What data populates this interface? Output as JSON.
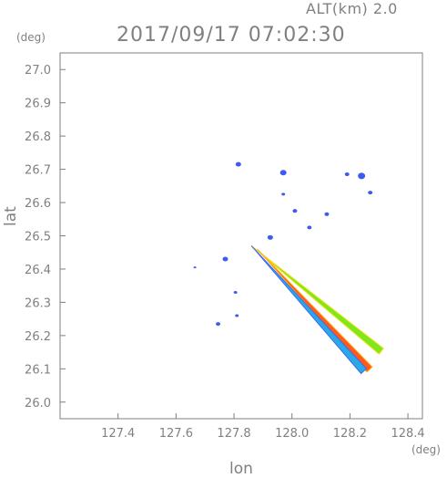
{
  "header": {
    "altitude": "ALT(km)  2.0",
    "timestamp": "2017/09/17  07:02:30"
  },
  "axes": {
    "y_unit": "(deg)",
    "x_unit": "(deg)",
    "y_title": "lat",
    "x_title": "lon"
  },
  "chart_data": {
    "type": "scatter",
    "xlim": [
      127.2,
      128.45
    ],
    "ylim": [
      25.95,
      27.05
    ],
    "x_ticks": [
      127.4,
      127.6,
      127.8,
      128.0,
      128.2,
      128.4
    ],
    "x_tick_labels": [
      "127.4",
      "127.6",
      "127.8",
      "128.0",
      "128.2",
      "128.4"
    ],
    "y_ticks": [
      26.0,
      26.1,
      26.2,
      26.3,
      26.4,
      26.5,
      26.6,
      26.7,
      26.8,
      26.9,
      27.0
    ],
    "y_tick_labels": [
      "26.0",
      "26.1",
      "26.2",
      "26.3",
      "26.4",
      "26.5",
      "26.6",
      "26.7",
      "26.8",
      "26.9",
      "27.0"
    ],
    "grid": false,
    "echo_streaks": [
      {
        "x0": 127.86,
        "y0": 26.47,
        "x1": 128.31,
        "y1": 26.155,
        "color": "#7ee81a",
        "edge_color": "#f0e020"
      },
      {
        "x0": 127.88,
        "y0": 26.46,
        "x1": 128.27,
        "y1": 26.1,
        "color": "#ff5a1a",
        "edge_color": "#ffaa20"
      },
      {
        "x0": 127.86,
        "y0": 26.47,
        "x1": 128.25,
        "y1": 26.095,
        "color": "#2aa8e8",
        "edge_color": "#3d6bf2"
      }
    ],
    "echo_blobs": [
      {
        "x": 127.815,
        "y": 26.715,
        "size": 4,
        "color": "#3d5bef"
      },
      {
        "x": 127.97,
        "y": 26.69,
        "size": 5,
        "color": "#3d5bef"
      },
      {
        "x": 127.97,
        "y": 26.625,
        "size": 2,
        "color": "#3d5bef"
      },
      {
        "x": 128.19,
        "y": 26.685,
        "size": 3,
        "color": "#3d5bef"
      },
      {
        "x": 128.24,
        "y": 26.68,
        "size": 6,
        "color": "#3d5bef"
      },
      {
        "x": 128.27,
        "y": 26.63,
        "size": 3,
        "color": "#3d5bef"
      },
      {
        "x": 128.12,
        "y": 26.565,
        "size": 3,
        "color": "#3d5bef"
      },
      {
        "x": 128.01,
        "y": 26.575,
        "size": 3,
        "color": "#3d5bef"
      },
      {
        "x": 128.06,
        "y": 26.525,
        "size": 3,
        "color": "#3d5bef"
      },
      {
        "x": 127.925,
        "y": 26.495,
        "size": 4,
        "color": "#3d5bef"
      },
      {
        "x": 127.77,
        "y": 26.43,
        "size": 4,
        "color": "#3d5bef"
      },
      {
        "x": 127.665,
        "y": 26.405,
        "size": 1,
        "color": "#3d5bef"
      },
      {
        "x": 127.805,
        "y": 26.33,
        "size": 2,
        "color": "#3d5bef"
      },
      {
        "x": 127.745,
        "y": 26.235,
        "size": 3,
        "color": "#3d5bef"
      },
      {
        "x": 127.81,
        "y": 26.26,
        "size": 2,
        "color": "#3d5bef"
      }
    ]
  }
}
